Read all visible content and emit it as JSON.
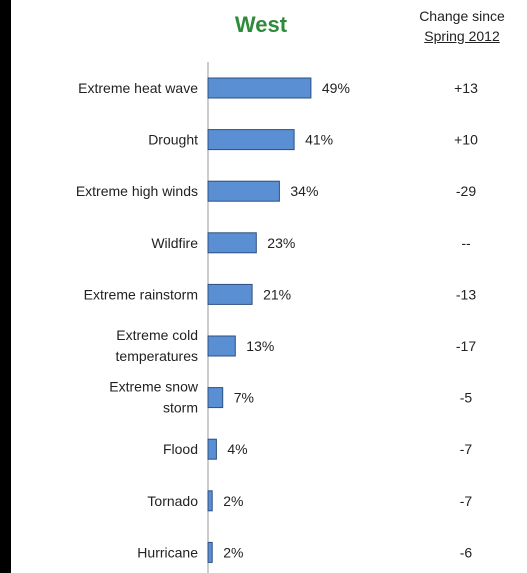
{
  "title": "West",
  "change_header": {
    "line1": "Change since",
    "line2": "Spring 2012"
  },
  "colors": {
    "bar": "#5b8fd4",
    "bar_stroke": "#2c4f80",
    "title": "#2e8b3a"
  },
  "chart_data": {
    "type": "bar",
    "orientation": "horizontal",
    "categories": [
      [
        "Extreme heat wave"
      ],
      [
        "Drought"
      ],
      [
        "Extreme high winds"
      ],
      [
        "Wildfire"
      ],
      [
        "Extreme rainstorm"
      ],
      [
        "Extreme cold",
        "temperatures"
      ],
      [
        "Extreme snow",
        "storm"
      ],
      [
        "Flood"
      ],
      [
        "Tornado"
      ],
      [
        "Hurricane"
      ]
    ],
    "values": [
      49,
      41,
      34,
      23,
      21,
      13,
      7,
      4,
      2,
      2
    ],
    "value_labels": [
      "49%",
      "41%",
      "34%",
      "23%",
      "21%",
      "13%",
      "7%",
      "4%",
      "2%",
      "2%"
    ],
    "change_since_spring_2012": [
      "+13",
      "+10",
      "-29",
      "--",
      "-13",
      "-17",
      "-5",
      "-7",
      "-7",
      "-6"
    ],
    "xlim": [
      0,
      100
    ],
    "grid": false
  }
}
